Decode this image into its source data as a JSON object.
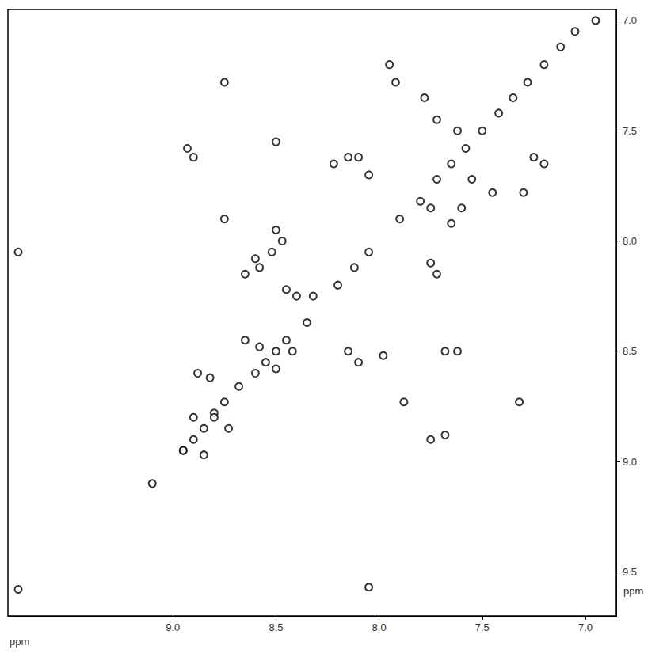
{
  "chart_data": {
    "type": "scatter",
    "x_label": "ppm",
    "y_label": "ppm",
    "xlim": [
      9.8,
      6.85
    ],
    "ylim": [
      6.95,
      9.7
    ],
    "xticks": [
      {
        "value": 9,
        "label": "9.0"
      },
      8.5,
      {
        "value": 8,
        "label": "8.0"
      },
      7.5,
      {
        "value": 7,
        "label": "7.0"
      }
    ],
    "yticks": [
      {
        "value": 7,
        "label": "7.0"
      },
      7.5,
      {
        "value": 8,
        "label": "8.0"
      },
      8.5,
      {
        "value": 9,
        "label": "9.0"
      },
      9.5
    ],
    "grid": false,
    "color": "#000000",
    "marker": "circle",
    "x": [
      9.1,
      8.95,
      8.9,
      8.85,
      8.8,
      8.75,
      8.68,
      8.6,
      8.55,
      8.5,
      8.45,
      8.35,
      8.2,
      8.12,
      8.05,
      7.9,
      7.8,
      7.72,
      7.65,
      7.58,
      7.5,
      7.42,
      7.35,
      7.28,
      7.2,
      7.12,
      7.05,
      6.95,
      8.75,
      8.9,
      8.93,
      8.75,
      8.5,
      8.5,
      8.52,
      8.6,
      8.58,
      8.65,
      9.75,
      8.22,
      8.15,
      8.1,
      8.05,
      7.95,
      7.92,
      7.78,
      7.72,
      7.62,
      7.55,
      7.45,
      7.3,
      7.25,
      7.2,
      7.6,
      7.75,
      7.65,
      7.75,
      7.72,
      7.68,
      7.98,
      7.62,
      7.88,
      7.32,
      7.75,
      7.68,
      8.88,
      8.82,
      8.9,
      8.8,
      8.73,
      8.42,
      8.5,
      8.65,
      8.58,
      8.95,
      8.85,
      8.1,
      8.15,
      8.45,
      8.4,
      8.47,
      8.32,
      8.05,
      9.75
    ],
    "values": [
      9.1,
      8.95,
      8.9,
      8.85,
      8.78,
      8.73,
      8.66,
      8.6,
      8.55,
      8.5,
      8.45,
      8.37,
      8.2,
      8.12,
      8.05,
      7.9,
      7.82,
      7.72,
      7.65,
      7.58,
      7.5,
      7.42,
      7.35,
      7.28,
      7.2,
      7.12,
      7.05,
      7.0,
      7.28,
      7.62,
      7.58,
      7.9,
      7.55,
      7.95,
      8.05,
      8.08,
      8.12,
      8.15,
      8.05,
      7.65,
      7.62,
      7.62,
      7.7,
      7.2,
      7.28,
      7.35,
      7.45,
      7.5,
      7.72,
      7.78,
      7.78,
      7.62,
      7.65,
      7.85,
      7.85,
      7.92,
      8.1,
      8.15,
      8.5,
      8.52,
      8.5,
      8.73,
      8.73,
      8.9,
      8.88,
      8.6,
      8.62,
      8.8,
      8.8,
      8.85,
      8.5,
      8.58,
      8.45,
      8.48,
      8.95,
      8.97,
      8.55,
      8.5,
      8.22,
      8.25,
      8.0,
      8.25,
      9.57,
      9.58
    ]
  }
}
